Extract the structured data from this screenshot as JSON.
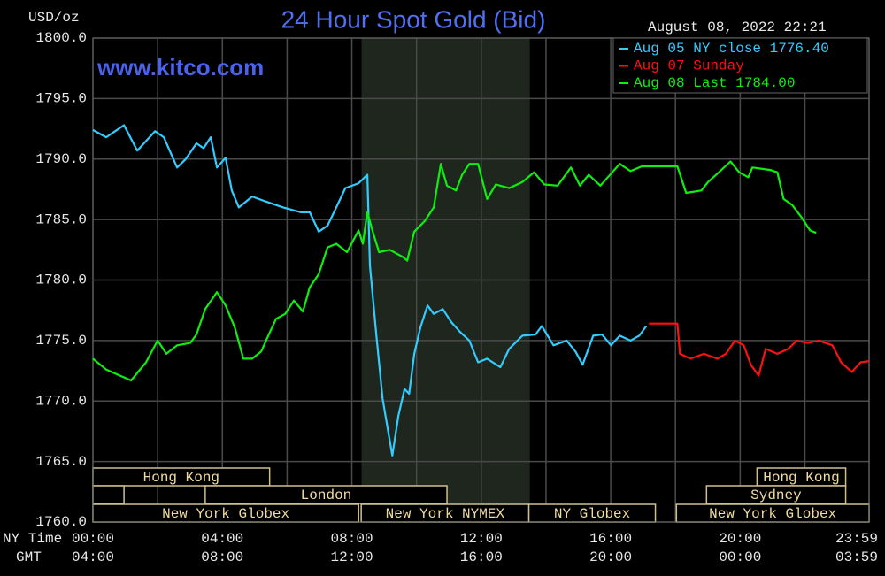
{
  "chart_data": {
    "type": "line",
    "title": "24 Hour Spot Gold (Bid)",
    "y_unit_label": "USD/oz",
    "timestamp": "August 08, 2022 22:21",
    "watermark": "www.kitco.com",
    "x_row_label": "NY Time",
    "x2_row_label": "GMT",
    "xlim": [
      0,
      23.983
    ],
    "xticks": [
      {
        "value": 0,
        "label": "00:00"
      },
      {
        "value": 4,
        "label": "04:00"
      },
      {
        "value": 8,
        "label": "08:00"
      },
      {
        "value": 12,
        "label": "12:00"
      },
      {
        "value": 16,
        "label": "16:00"
      },
      {
        "value": 20,
        "label": "20:00"
      },
      {
        "value": 23.983,
        "label": "23:59"
      }
    ],
    "x2ticks": [
      {
        "value": 0,
        "label": "04:00"
      },
      {
        "value": 4,
        "label": "08:00"
      },
      {
        "value": 8,
        "label": "12:00"
      },
      {
        "value": 12,
        "label": "16:00"
      },
      {
        "value": 16,
        "label": "20:00"
      },
      {
        "value": 20,
        "label": "00:00"
      },
      {
        "value": 23.983,
        "label": "03:59"
      }
    ],
    "xgrid": [
      0,
      2,
      4,
      6,
      8,
      10,
      12,
      14,
      16,
      18,
      20,
      22,
      23.983
    ],
    "ylim": [
      1760,
      1800
    ],
    "yticks": [
      {
        "value": 1800,
        "label": "1800.0"
      },
      {
        "value": 1795,
        "label": "1795.0"
      },
      {
        "value": 1790,
        "label": "1790.0"
      },
      {
        "value": 1785,
        "label": "1785.0"
      },
      {
        "value": 1780,
        "label": "1780.0"
      },
      {
        "value": 1775,
        "label": "1775.0"
      },
      {
        "value": 1770,
        "label": "1770.0"
      },
      {
        "value": 1765,
        "label": "1765.0"
      },
      {
        "value": 1760,
        "label": "1760.0"
      }
    ],
    "grid": true,
    "legend": "top-right",
    "shaded_x": [
      8.3,
      13.5
    ],
    "session_rows": [
      [
        {
          "label": "Hong Kong",
          "start": 0,
          "end": 5.46
        },
        {
          "label": "Hong Kong",
          "start": 20.52,
          "end": 23.26
        }
      ],
      [
        {
          "label": null,
          "start": 0,
          "end": 0.96
        },
        {
          "label": "London",
          "start": 3.47,
          "end": 10.94
        },
        {
          "label": "Sydney",
          "start": 18.96,
          "end": 23.26
        }
      ],
      [
        {
          "label": "New York Globex",
          "start": 0,
          "end": 8.21
        },
        {
          "label": "New York NYMEX",
          "start": 8.29,
          "end": 13.47
        },
        {
          "label": "NY Globex",
          "start": 13.47,
          "end": 17.38
        },
        {
          "label": "New York Globex",
          "start": 18.03,
          "end": 23.983
        }
      ]
    ],
    "series": [
      {
        "name": "Aug 05 NY close 1776.40",
        "color": "#33ccff",
        "x": [
          0,
          0.41,
          0.96,
          1.37,
          1.92,
          2.19,
          2.6,
          2.87,
          3.2,
          3.42,
          3.64,
          3.83,
          4.1,
          4.29,
          4.51,
          4.92,
          5.33,
          5.88,
          6.43,
          6.7,
          6.98,
          7.25,
          7.52,
          7.8,
          8.21,
          8.48,
          8.56,
          8.76,
          8.95,
          9.11,
          9.25,
          9.44,
          9.63,
          9.77,
          9.93,
          10.12,
          10.34,
          10.53,
          10.81,
          11.08,
          11.35,
          11.63,
          11.9,
          12.18,
          12.59,
          12.86,
          13.27,
          13.68,
          13.87,
          14.23,
          14.64,
          14.91,
          15.13,
          15.46,
          15.73,
          16.01,
          16.28,
          16.61,
          16.88,
          17.1
        ],
        "values": [
          1792.4,
          1791.8,
          1792.8,
          1790.7,
          1792.3,
          1791.8,
          1789.3,
          1790.0,
          1791.3,
          1790.9,
          1791.8,
          1789.3,
          1790.1,
          1787.4,
          1786.0,
          1786.9,
          1786.5,
          1786.0,
          1785.6,
          1785.6,
          1784.0,
          1784.5,
          1786.0,
          1787.6,
          1788.0,
          1788.7,
          1781.2,
          1775.4,
          1770.2,
          1767.7,
          1765.5,
          1768.8,
          1771.0,
          1770.6,
          1773.9,
          1776.1,
          1777.9,
          1777.2,
          1777.6,
          1776.5,
          1775.7,
          1775.0,
          1773.2,
          1773.5,
          1772.8,
          1774.3,
          1775.4,
          1775.5,
          1776.2,
          1774.6,
          1775.0,
          1774.1,
          1773.0,
          1775.4,
          1775.5,
          1774.6,
          1775.4,
          1775.0,
          1775.4,
          1776.2
        ]
      },
      {
        "name": "Aug 07 Sunday",
        "color": "#ff1010",
        "x": [
          17.18,
          18.06,
          18.14,
          18.47,
          18.88,
          19.29,
          19.56,
          19.84,
          20.11,
          20.33,
          20.57,
          20.79,
          21.15,
          21.48,
          21.75,
          22.08,
          22.43,
          22.85,
          23.12,
          23.45,
          23.72,
          23.98
        ],
        "values": [
          1776.4,
          1776.4,
          1773.9,
          1773.5,
          1773.9,
          1773.5,
          1773.9,
          1775.0,
          1774.6,
          1773.0,
          1772.1,
          1774.3,
          1773.9,
          1774.3,
          1775.0,
          1774.8,
          1775.0,
          1774.6,
          1773.2,
          1772.4,
          1773.2,
          1773.3
        ]
      },
      {
        "name": "Aug 08 Last 1784.00",
        "color": "#10ee10",
        "x": [
          0,
          0.41,
          1.18,
          1.64,
          2.0,
          2.27,
          2.6,
          3.01,
          3.2,
          3.47,
          3.83,
          4.1,
          4.38,
          4.65,
          4.92,
          5.2,
          5.47,
          5.66,
          5.94,
          6.21,
          6.49,
          6.7,
          6.98,
          7.25,
          7.52,
          7.85,
          8.21,
          8.34,
          8.48,
          8.67,
          8.84,
          9.17,
          9.58,
          9.71,
          9.93,
          10.26,
          10.53,
          10.75,
          10.94,
          11.22,
          11.41,
          11.63,
          11.9,
          12.18,
          12.45,
          12.86,
          13.27,
          13.63,
          13.95,
          14.36,
          14.77,
          15.05,
          15.32,
          15.68,
          16.28,
          16.61,
          16.96,
          18.06,
          18.33,
          18.8,
          19.01,
          19.34,
          19.7,
          19.97,
          20.25,
          20.38,
          20.93,
          21.15,
          21.34,
          21.61,
          21.89,
          22.16,
          22.35
        ],
        "values": [
          1773.5,
          1772.6,
          1771.7,
          1773.2,
          1775.0,
          1773.9,
          1774.6,
          1774.8,
          1775.5,
          1777.6,
          1779.0,
          1777.9,
          1776.1,
          1773.5,
          1773.5,
          1774.1,
          1775.7,
          1776.8,
          1777.2,
          1778.3,
          1777.4,
          1779.4,
          1780.5,
          1782.7,
          1783.0,
          1782.3,
          1784.1,
          1783.0,
          1785.6,
          1783.8,
          1782.3,
          1782.5,
          1781.9,
          1781.6,
          1784.0,
          1784.9,
          1786.0,
          1789.6,
          1787.8,
          1787.4,
          1788.7,
          1789.6,
          1789.6,
          1786.7,
          1787.9,
          1787.6,
          1788.1,
          1788.9,
          1787.9,
          1787.8,
          1789.3,
          1787.8,
          1788.7,
          1787.8,
          1789.6,
          1789.0,
          1789.4,
          1789.4,
          1787.2,
          1787.4,
          1788.1,
          1788.9,
          1789.8,
          1788.9,
          1788.5,
          1789.3,
          1789.1,
          1788.9,
          1786.7,
          1786.2,
          1785.2,
          1784.1,
          1783.9
        ]
      }
    ]
  }
}
